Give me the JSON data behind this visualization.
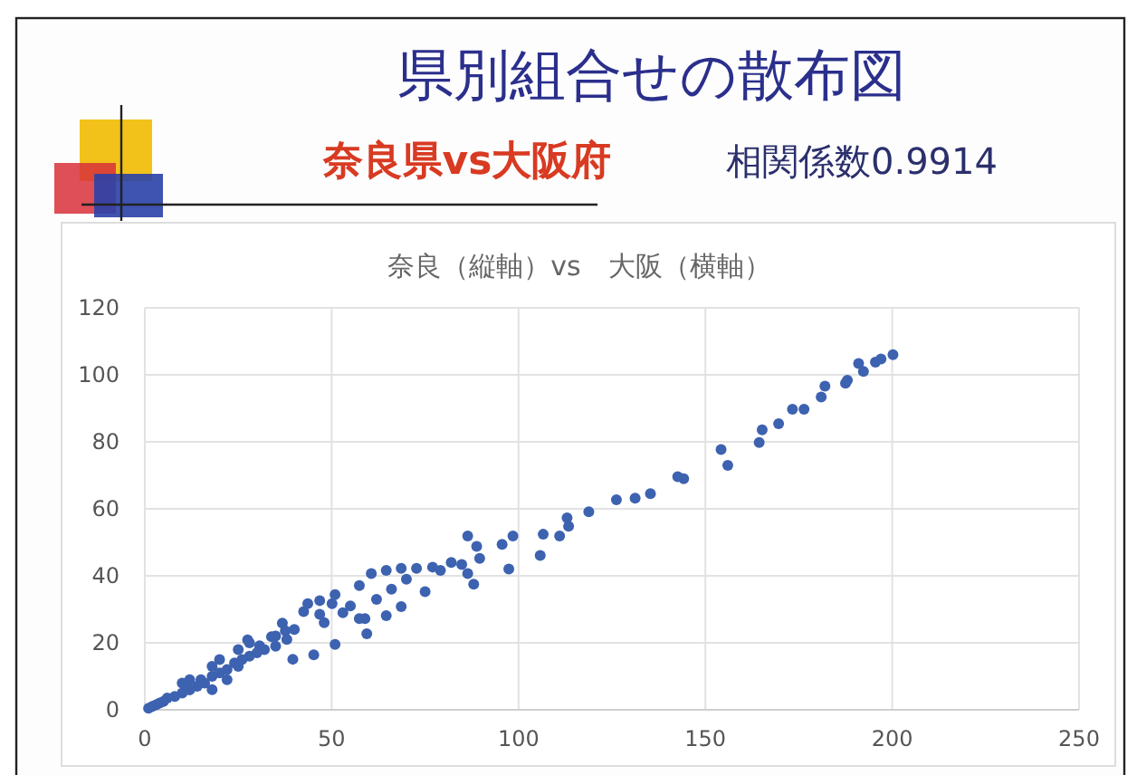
{
  "chart_data": {
    "type": "scatter",
    "title": "県別組合せの散布図",
    "subtitle": "奈良県vs大阪府",
    "annotations": [
      "相関係数0.9914",
      "奈良（縦軸）vs　大阪（横軸）"
    ],
    "xlim": [
      0,
      250
    ],
    "xticks": [
      0,
      50,
      100,
      150,
      200,
      250
    ],
    "ylim": [
      0,
      120
    ],
    "yticks": [
      0,
      20,
      40,
      60,
      80,
      100,
      120
    ],
    "grid": true,
    "marker": "circle",
    "series": [
      {
        "color": "#3d62b0",
        "x": [
          200.2,
          197,
          195.5,
          192.3,
          191,
          188,
          187.5,
          182,
          181,
          176.4,
          173.3,
          169.6,
          165.2,
          164.4,
          156,
          154.2,
          144.2,
          142.6,
          135.3,
          131.2,
          126.2,
          118.8,
          113.4,
          113,
          111,
          106.6,
          105.8,
          98.5,
          97.4,
          95.6,
          86.4,
          88.8,
          89.6,
          88,
          86.4,
          84.8,
          79.1,
          75,
          72.7,
          68.6,
          64.6,
          60.6,
          57.4,
          68.6,
          64.6,
          58.9,
          57.4,
          59.4,
          50.9,
          50.1,
          50.9,
          46.8,
          46.8,
          43.6,
          42.5,
          45.2,
          39.6,
          36.8,
          37.6,
          33.9,
          30.7,
          27.5,
          77,
          82,
          70,
          66,
          62,
          55,
          53,
          48,
          40,
          38,
          35,
          32,
          30,
          28,
          26,
          25,
          24,
          22,
          20,
          20,
          18,
          18,
          16,
          15,
          14,
          12,
          12,
          10,
          10,
          8,
          6,
          5,
          4,
          3,
          2,
          1,
          22,
          25,
          28,
          35,
          12,
          18
        ],
        "values": [
          106,
          104.7,
          103.8,
          101,
          103.4,
          98.4,
          97.5,
          96.6,
          93.4,
          89.7,
          89.7,
          85.4,
          83.6,
          79.8,
          73,
          77.7,
          69,
          69.6,
          64.5,
          63.2,
          62.7,
          59.1,
          54.8,
          57.3,
          51.9,
          52.4,
          46.1,
          51.9,
          42,
          49.4,
          51.9,
          48.8,
          45.2,
          37.5,
          40.7,
          43.4,
          41.6,
          35.3,
          42.2,
          42.2,
          41.6,
          40.7,
          37.1,
          30.8,
          28.1,
          27.2,
          27.2,
          22.7,
          34.4,
          31.7,
          19.5,
          32.6,
          28.5,
          31.7,
          29.3,
          16.4,
          15.1,
          25.9,
          23.6,
          21.8,
          19.1,
          20.9,
          42.6,
          44,
          39,
          36,
          33,
          31,
          29,
          26,
          24,
          21,
          19,
          18,
          17,
          16,
          15,
          13,
          14,
          12,
          11,
          15,
          10,
          13,
          8,
          9,
          7,
          6,
          9,
          5,
          8,
          4,
          3.5,
          2.5,
          2,
          1.5,
          1,
          0.5,
          9,
          18,
          20,
          22,
          6,
          6
        ]
      }
    ]
  }
}
